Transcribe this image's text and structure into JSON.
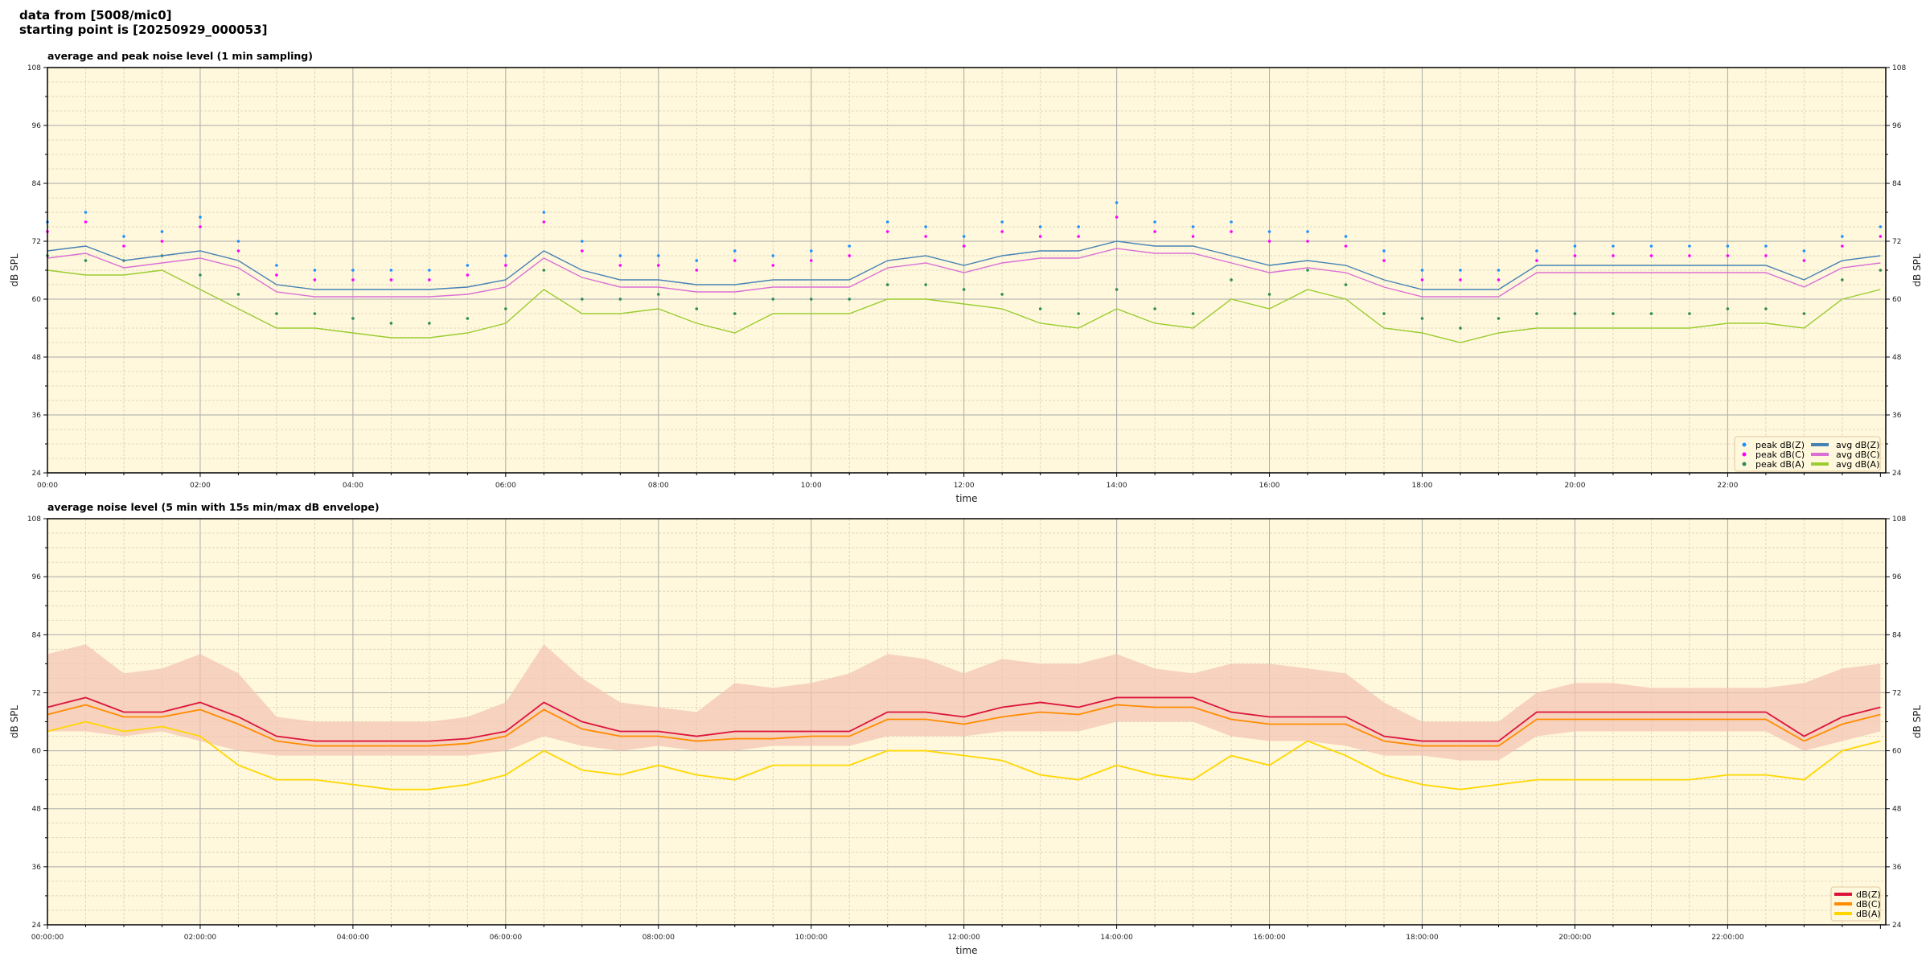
{
  "header": {
    "line1": "data from [5008/mic0]",
    "line2": "starting point is [20250929_000053]"
  },
  "colors": {
    "plot_bg": "#fff8dc",
    "avg_z": "#4682b4",
    "avg_c": "#da70d6",
    "avg_a": "#9acd32",
    "peak_z": "#1e90ff",
    "peak_c": "#ff00ff",
    "peak_a": "#2e8b57",
    "z": "#dc143c",
    "c": "#ff8c00",
    "a": "#ffd700",
    "envelope": "#f4c2b0"
  },
  "chart_data": [
    {
      "type": "line",
      "title": "average and peak noise level (1 min sampling)",
      "xlabel": "time",
      "ylabel": "dB SPL",
      "ylim": [
        24,
        108
      ],
      "xlim": [
        "00:00",
        "24:00"
      ],
      "yticks": [
        24,
        36,
        48,
        60,
        72,
        84,
        96,
        108
      ],
      "xtick_labels": [
        "00:00",
        "02:00",
        "04:00",
        "06:00",
        "08:00",
        "10:00",
        "12:00",
        "14:00",
        "16:00",
        "18:00",
        "20:00",
        "22:00"
      ],
      "grid": true,
      "legend_position": "lower-right",
      "x_hours": [
        0,
        0.5,
        1,
        1.5,
        2,
        2.5,
        3,
        3.5,
        4,
        4.5,
        5,
        5.5,
        6,
        6.5,
        7,
        7.5,
        8,
        8.5,
        9,
        9.5,
        10,
        10.5,
        11,
        11.5,
        12,
        12.5,
        13,
        13.5,
        14,
        14.5,
        15,
        15.5,
        16,
        16.5,
        17,
        17.5,
        18,
        18.5,
        19,
        19.5,
        20,
        20.5,
        21,
        21.5,
        22,
        22.5,
        23,
        23.5,
        24
      ],
      "series": [
        {
          "name": "peak dB(Z)",
          "kind": "scatter",
          "color_key": "peak_z",
          "values": [
            76,
            78,
            73,
            74,
            77,
            72,
            67,
            66,
            66,
            66,
            66,
            67,
            69,
            78,
            72,
            69,
            69,
            68,
            70,
            69,
            70,
            71,
            76,
            75,
            73,
            76,
            75,
            75,
            80,
            76,
            75,
            76,
            74,
            74,
            73,
            70,
            66,
            66,
            66,
            70,
            71,
            71,
            71,
            71,
            71,
            71,
            70,
            73,
            75
          ]
        },
        {
          "name": "peak dB(C)",
          "kind": "scatter",
          "color_key": "peak_c",
          "values": [
            74,
            76,
            71,
            72,
            75,
            70,
            65,
            64,
            64,
            64,
            64,
            65,
            67,
            76,
            70,
            67,
            67,
            66,
            68,
            67,
            68,
            69,
            74,
            73,
            71,
            74,
            73,
            73,
            77,
            74,
            73,
            74,
            72,
            72,
            71,
            68,
            64,
            64,
            64,
            68,
            69,
            69,
            69,
            69,
            69,
            69,
            68,
            71,
            73
          ]
        },
        {
          "name": "peak dB(A)",
          "kind": "scatter",
          "color_key": "peak_a",
          "values": [
            69,
            68,
            68,
            69,
            65,
            61,
            57,
            57,
            56,
            55,
            55,
            56,
            58,
            66,
            60,
            60,
            61,
            58,
            57,
            60,
            60,
            60,
            63,
            63,
            62,
            61,
            58,
            57,
            62,
            58,
            57,
            64,
            61,
            66,
            63,
            57,
            56,
            54,
            56,
            57,
            57,
            57,
            57,
            57,
            58,
            58,
            57,
            64,
            66
          ]
        },
        {
          "name": "avg dB(Z)",
          "kind": "line",
          "color_key": "avg_z",
          "values": [
            70,
            71,
            68,
            69,
            70,
            68,
            63,
            62,
            62,
            62,
            62,
            62.5,
            64,
            70,
            66,
            64,
            64,
            63,
            63,
            64,
            64,
            64,
            68,
            69,
            67,
            69,
            70,
            70,
            72,
            71,
            71,
            69,
            67,
            68,
            67,
            64,
            62,
            62,
            62,
            67,
            67,
            67,
            67,
            67,
            67,
            67,
            64,
            68,
            69
          ]
        },
        {
          "name": "avg dB(C)",
          "kind": "line",
          "color_key": "avg_c",
          "values": [
            68.5,
            69.5,
            66.5,
            67.5,
            68.5,
            66.5,
            61.5,
            60.5,
            60.5,
            60.5,
            60.5,
            61,
            62.5,
            68.5,
            64.5,
            62.5,
            62.5,
            61.5,
            61.5,
            62.5,
            62.5,
            62.5,
            66.5,
            67.5,
            65.5,
            67.5,
            68.5,
            68.5,
            70.5,
            69.5,
            69.5,
            67.5,
            65.5,
            66.5,
            65.5,
            62.5,
            60.5,
            60.5,
            60.5,
            65.5,
            65.5,
            65.5,
            65.5,
            65.5,
            65.5,
            65.5,
            62.5,
            66.5,
            67.5
          ]
        },
        {
          "name": "avg dB(A)",
          "kind": "line",
          "color_key": "avg_a",
          "values": [
            66,
            65,
            65,
            66,
            62,
            58,
            54,
            54,
            53,
            52,
            52,
            53,
            55,
            62,
            57,
            57,
            58,
            55,
            53,
            57,
            57,
            57,
            60,
            60,
            59,
            58,
            55,
            54,
            58,
            55,
            54,
            60,
            58,
            62,
            60,
            54,
            53,
            51,
            53,
            54,
            54,
            54,
            54,
            54,
            55,
            55,
            54,
            60,
            62
          ]
        }
      ]
    },
    {
      "type": "line",
      "title": "average noise level (5 min with 15s min/max dB envelope)",
      "xlabel": "time",
      "ylabel": "dB SPL",
      "ylim": [
        24,
        108
      ],
      "xlim": [
        "00:00:00",
        "24:00:00"
      ],
      "yticks": [
        24,
        36,
        48,
        60,
        72,
        84,
        96,
        108
      ],
      "xtick_labels": [
        "00:00:00",
        "02:00:00",
        "04:00:00",
        "06:00:00",
        "08:00:00",
        "10:00:00",
        "12:00:00",
        "14:00:00",
        "16:00:00",
        "18:00:00",
        "20:00:00",
        "22:00:00"
      ],
      "grid": true,
      "legend_position": "lower-right",
      "x_hours": [
        0,
        0.5,
        1,
        1.5,
        2,
        2.5,
        3,
        3.5,
        4,
        4.5,
        5,
        5.5,
        6,
        6.5,
        7,
        7.5,
        8,
        8.5,
        9,
        9.5,
        10,
        10.5,
        11,
        11.5,
        12,
        12.5,
        13,
        13.5,
        14,
        14.5,
        15,
        15.5,
        16,
        16.5,
        17,
        17.5,
        18,
        18.5,
        19,
        19.5,
        20,
        20.5,
        21,
        21.5,
        22,
        22.5,
        23,
        23.5,
        24
      ],
      "envelope_max": [
        80,
        82,
        76,
        77,
        80,
        76,
        67,
        66,
        66,
        66,
        66,
        67,
        70,
        82,
        75,
        70,
        69,
        68,
        74,
        73,
        74,
        76,
        80,
        79,
        76,
        79,
        78,
        78,
        80,
        77,
        76,
        78,
        78,
        77,
        76,
        70,
        66,
        66,
        66,
        72,
        74,
        74,
        73,
        73,
        73,
        73,
        74,
        77,
        78
      ],
      "envelope_min": [
        64,
        64,
        63,
        64,
        62,
        60,
        59,
        59,
        59,
        59,
        59,
        59,
        60,
        63,
        61,
        60,
        61,
        60,
        60,
        61,
        61,
        61,
        63,
        63,
        63,
        64,
        64,
        64,
        66,
        66,
        66,
        63,
        62,
        62,
        61,
        59,
        59,
        58,
        58,
        63,
        64,
        64,
        64,
        64,
        64,
        64,
        60,
        62,
        64
      ],
      "series": [
        {
          "name": "dB(Z)",
          "color_key": "z",
          "values": [
            69,
            71,
            68,
            68,
            70,
            67,
            63,
            62,
            62,
            62,
            62,
            62.5,
            64,
            70,
            66,
            64,
            64,
            63,
            64,
            64,
            64,
            64,
            68,
            68,
            67,
            69,
            70,
            69,
            71,
            71,
            71,
            68,
            67,
            67,
            67,
            63,
            62,
            62,
            62,
            68,
            68,
            68,
            68,
            68,
            68,
            68,
            63,
            67,
            69
          ]
        },
        {
          "name": "dB(C)",
          "color_key": "c",
          "values": [
            67.5,
            69.5,
            67,
            67,
            68.5,
            65.5,
            62,
            61,
            61,
            61,
            61,
            61.5,
            63,
            68.5,
            64.5,
            63,
            63,
            62,
            62.5,
            62.5,
            63,
            63,
            66.5,
            66.5,
            65.5,
            67,
            68,
            67.5,
            69.5,
            69,
            69,
            66.5,
            65.5,
            65.5,
            65.5,
            62,
            61,
            61,
            61,
            66.5,
            66.5,
            66.5,
            66.5,
            66.5,
            66.5,
            66.5,
            62,
            65.5,
            67.5
          ]
        },
        {
          "name": "dB(A)",
          "color_key": "a",
          "values": [
            64,
            66,
            64,
            65,
            63,
            57,
            54,
            54,
            53,
            52,
            52,
            53,
            55,
            60,
            56,
            55,
            57,
            55,
            54,
            57,
            57,
            57,
            60,
            60,
            59,
            58,
            55,
            54,
            57,
            55,
            54,
            59,
            57,
            62,
            59,
            55,
            53,
            52,
            53,
            54,
            54,
            54,
            54,
            54,
            55,
            55,
            54,
            60,
            62
          ]
        }
      ]
    }
  ]
}
